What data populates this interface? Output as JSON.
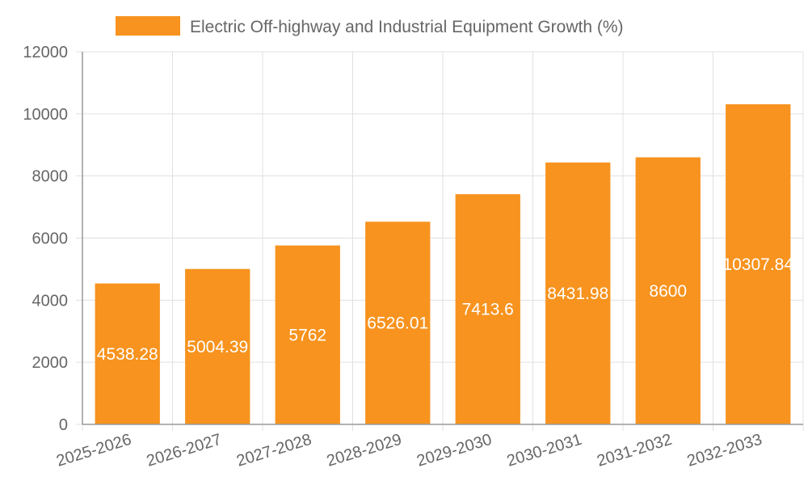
{
  "chart_data": {
    "type": "bar",
    "categories": [
      "2025-2026",
      "2026-2027",
      "2027-2028",
      "2028-2029",
      "2029-2030",
      "2030-2031",
      "2031-2032",
      "2032-2033"
    ],
    "series": [
      {
        "name": "Electric Off-highway and Industrial Equipment Growth (%)",
        "values": [
          4538.28,
          5004.39,
          5762,
          6526.01,
          7413.6,
          8431.98,
          8600,
          10307.84
        ],
        "data_labels": [
          "4538.28",
          "5004.39",
          "5762",
          "6526.01",
          "7413.6",
          "8431.98",
          "8600",
          "10307.84"
        ],
        "color": "#f7931e"
      }
    ],
    "ylim": [
      0,
      12000
    ],
    "yticks": [
      0,
      2000,
      4000,
      6000,
      8000,
      10000,
      12000
    ],
    "ytick_labels": [
      "0",
      "2000",
      "4000",
      "6000",
      "8000",
      "10000",
      "12000"
    ],
    "grid": true,
    "legend_position": "top-center",
    "xlabel": "",
    "ylabel": "",
    "colors": {
      "grid": "#e0e0e0",
      "axis": "#999999",
      "text": "#666666",
      "label": "#ffffff"
    }
  }
}
